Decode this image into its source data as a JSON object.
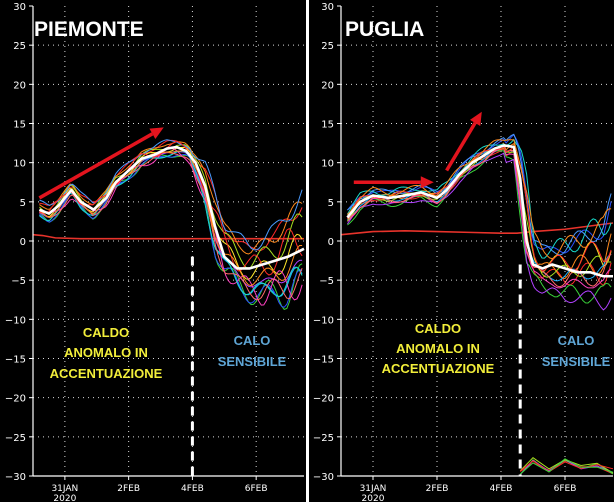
{
  "colors": {
    "background": "#000000",
    "axis": "#ffffff",
    "grid": "#ffffff",
    "climatology": "#e8332b",
    "mean": "#ffffff",
    "arrow": "#e3141e",
    "caption_warm": "#f2ee3a",
    "caption_cold": "#5fa6d6",
    "ensemble": [
      "#ff2a2a",
      "#ff8a1c",
      "#ffe82a",
      "#3ad23a",
      "#1ab0ff",
      "#2a50ff",
      "#b040ff",
      "#ff40c0",
      "#18d8c8",
      "#a8e020",
      "#ff6a6a",
      "#4a9bff"
    ]
  },
  "chart_data": [
    {
      "type": "line",
      "title": "PIEMONTE",
      "ylim": [
        -30,
        30
      ],
      "yticks": [
        -30,
        -25,
        -20,
        -15,
        -10,
        -5,
        0,
        5,
        10,
        15,
        20,
        25,
        30
      ],
      "xlim": [
        0,
        8.5
      ],
      "xticks": [
        {
          "value": 1,
          "label": "31JAN",
          "sublabel": "2020"
        },
        {
          "value": 3,
          "label": "2FEB"
        },
        {
          "value": 5,
          "label": "4FEB"
        },
        {
          "value": 7,
          "label": "6FEB"
        }
      ],
      "grid": true,
      "series": [
        {
          "role": "climatology",
          "x": [
            0,
            0.3,
            0.7,
            1.5,
            3,
            4.5,
            5,
            6,
            7,
            8.5
          ],
          "values": [
            0.8,
            0.7,
            0.4,
            0.3,
            0.3,
            0.3,
            0.3,
            0.3,
            0.3,
            0.3
          ]
        },
        {
          "role": "ensemble-mean",
          "x": [
            0.2,
            0.5,
            0.8,
            1.2,
            1.5,
            1.9,
            2.3,
            2.6,
            3,
            3.4,
            3.8,
            4.2,
            4.5,
            4.8,
            5.1,
            5.4,
            5.7,
            6,
            6.4,
            6.8,
            7.2,
            7.6,
            8,
            8.5
          ],
          "values": [
            4,
            3.5,
            4.5,
            6.5,
            5,
            4,
            5.5,
            7.5,
            9,
            10.5,
            11,
            11.8,
            12,
            11.5,
            10,
            7,
            2,
            -2,
            -3.5,
            -3.5,
            -3,
            -2.5,
            -2,
            -1
          ]
        }
      ],
      "ensemble_range": {
        "x": [
          5,
          5.4,
          5.7,
          6,
          6.4,
          6.8,
          7.2,
          7.6,
          8,
          8.5
        ],
        "min": [
          9,
          3.5,
          -2,
          -5,
          -7,
          -8,
          -9,
          -8,
          -9,
          -8
        ],
        "max": [
          11.5,
          10,
          7,
          3,
          1,
          0,
          1,
          2,
          5,
          7
        ]
      },
      "trend_arrow": {
        "from": [
          0.2,
          5.5
        ],
        "to": [
          4.1,
          14.5
        ]
      },
      "marker": {
        "x": 5,
        "y_from": -30,
        "y_to": -2
      },
      "captions": [
        {
          "text": "CALDO",
          "style": "warm"
        },
        {
          "text": "ANOMALO IN",
          "style": "warm"
        },
        {
          "text": "ACCENTUAZIONE",
          "style": "warm"
        },
        {
          "text": "CALO",
          "style": "cold"
        },
        {
          "text": "SENSIBILE",
          "style": "cold"
        }
      ]
    },
    {
      "type": "line",
      "title": "PUGLIA",
      "ylim": [
        -30,
        30
      ],
      "yticks": [
        -30,
        -25,
        -20,
        -15,
        -10,
        -5,
        0,
        5,
        10,
        15,
        20,
        25,
        30
      ],
      "xlim": [
        0,
        8.5
      ],
      "xticks": [
        {
          "value": 1,
          "label": "31JAN",
          "sublabel": "2020"
        },
        {
          "value": 3,
          "label": "2FEB"
        },
        {
          "value": 5,
          "label": "4FEB"
        },
        {
          "value": 7,
          "label": "6FEB"
        }
      ],
      "grid": true,
      "series": [
        {
          "role": "climatology",
          "x": [
            0,
            1,
            2,
            3,
            4,
            5,
            5.5,
            6,
            7,
            8.5
          ],
          "values": [
            0.8,
            1.2,
            1.3,
            1.2,
            1.1,
            1.0,
            1.0,
            1.2,
            1.5,
            2.3
          ]
        },
        {
          "role": "ensemble-mean",
          "x": [
            0.2,
            0.6,
            1,
            1.5,
            2,
            2.5,
            3,
            3.3,
            3.7,
            4.1,
            4.5,
            4.8,
            5.1,
            5.4,
            5.6,
            5.8,
            6,
            6.3,
            6.6,
            7,
            7.4,
            7.8,
            8.2,
            8.5
          ],
          "values": [
            3,
            5,
            5.8,
            5.5,
            5.8,
            6.2,
            5.5,
            6.5,
            8.5,
            10,
            11,
            11.8,
            12.2,
            12,
            8,
            0,
            -3,
            -3.5,
            -3,
            -3.5,
            -4,
            -4,
            -4.5,
            -4.5
          ]
        },
        {
          "role": "low-tail",
          "x": [
            5.6,
            6,
            6.5,
            7,
            7.5,
            8,
            8.5
          ],
          "values": [
            -29.5,
            -28,
            -29.3,
            -28.2,
            -29,
            -28.5,
            -29.4
          ]
        }
      ],
      "ensemble_range": {
        "x": [
          5.1,
          5.4,
          5.6,
          5.8,
          6,
          6.3,
          6.6,
          7,
          7.4,
          7.8,
          8.2,
          8.5
        ],
        "min": [
          10,
          10,
          3,
          -4,
          -6,
          -7,
          -7,
          -8,
          -8,
          -8,
          -9,
          -8
        ],
        "max": [
          13,
          14,
          13,
          9,
          2,
          0,
          0,
          1,
          2,
          3,
          4,
          8
        ]
      },
      "trend_arrow_segments": [
        {
          "from": [
            0.4,
            7.5
          ],
          "to": [
            2.9,
            7.5
          ]
        },
        {
          "from": [
            3.3,
            9
          ],
          "to": [
            4.4,
            16.5
          ]
        }
      ],
      "marker": {
        "x": 5.6,
        "y_from": -30,
        "y_to": -3
      },
      "captions": [
        {
          "text": "CALDO",
          "style": "warm"
        },
        {
          "text": "ANOMALO IN",
          "style": "warm"
        },
        {
          "text": "ACCENTUAZIONE",
          "style": "warm"
        },
        {
          "text": "CALO",
          "style": "cold"
        },
        {
          "text": "SENSIBILE",
          "style": "cold"
        }
      ]
    }
  ]
}
